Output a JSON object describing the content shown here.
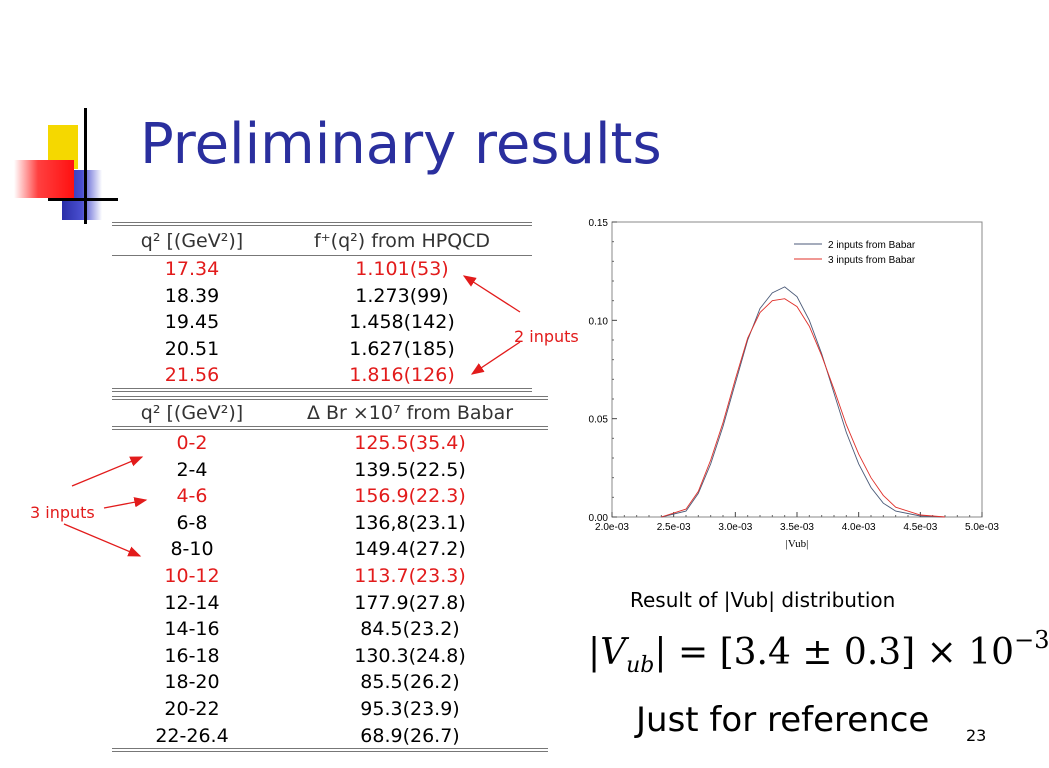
{
  "slide": {
    "title": "Preliminary results",
    "page_number": "23"
  },
  "table_hpqcd": {
    "header": [
      "q² [(GeV²)]",
      "f⁺(q²) from HPQCD"
    ],
    "rows": [
      {
        "q2": "17.34",
        "value": "1.101(53)",
        "highlight": true
      },
      {
        "q2": "18.39",
        "value": "1.273(99)",
        "highlight": false
      },
      {
        "q2": "19.45",
        "value": "1.458(142)",
        "highlight": false
      },
      {
        "q2": "20.51",
        "value": "1.627(185)",
        "highlight": false
      },
      {
        "q2": "21.56",
        "value": "1.816(126)",
        "highlight": true
      }
    ]
  },
  "table_babar": {
    "header": [
      "q² [(GeV²)]",
      "Δ Br ×10⁷ from Babar"
    ],
    "rows": [
      {
        "q2": "0-2",
        "value": "125.5(35.4)",
        "highlight": true
      },
      {
        "q2": "2-4",
        "value": "139.5(22.5)",
        "highlight": false
      },
      {
        "q2": "4-6",
        "value": "156.9(22.3)",
        "highlight": true
      },
      {
        "q2": "6-8",
        "value": "136,8(23.1)",
        "highlight": false
      },
      {
        "q2": "8-10",
        "value": "149.4(27.2)",
        "highlight": false
      },
      {
        "q2": "10-12",
        "value": "113.7(23.3)",
        "highlight": true
      },
      {
        "q2": "12-14",
        "value": "177.9(27.8)",
        "highlight": false
      },
      {
        "q2": "14-16",
        "value": "84.5(23.2)",
        "highlight": false
      },
      {
        "q2": "16-18",
        "value": "130.3(24.8)",
        "highlight": false
      },
      {
        "q2": "18-20",
        "value": "85.5(26.2)",
        "highlight": false
      },
      {
        "q2": "20-22",
        "value": "95.3(23.9)",
        "highlight": false
      },
      {
        "q2": "22-26.4",
        "value": "68.9(26.7)",
        "highlight": false
      }
    ]
  },
  "annotations": {
    "two_inputs": "2 inputs",
    "three_inputs": "3 inputs"
  },
  "colors": {
    "title": "#2a2f9e",
    "highlight": "#e21b1b",
    "series_2": "#4b5a78",
    "series_3": "#e0302a"
  },
  "chart_data": {
    "type": "line",
    "xlabel": "|Vub|",
    "ylabel": "",
    "xlim": [
      0.002,
      0.005
    ],
    "ylim": [
      0,
      0.15
    ],
    "x_ticks": [
      "2.0e-03",
      "2.5e-03",
      "3.0e-03",
      "3.5e-03",
      "4.0e-03",
      "4.5e-03",
      "5.0e-03"
    ],
    "y_ticks": [
      "0.00",
      "0.05",
      "0.10",
      "0.15"
    ],
    "legend": "top-right",
    "series": [
      {
        "name": "2 inputs from Babar",
        "x": [
          0.0024,
          0.0026,
          0.0027,
          0.0028,
          0.0029,
          0.003,
          0.0031,
          0.0032,
          0.0033,
          0.0034,
          0.0035,
          0.0036,
          0.0037,
          0.0038,
          0.0039,
          0.004,
          0.0041,
          0.0042,
          0.0043,
          0.0045,
          0.0047
        ],
        "y": [
          0,
          0.003,
          0.012,
          0.027,
          0.046,
          0.068,
          0.09,
          0.106,
          0.114,
          0.117,
          0.112,
          0.1,
          0.083,
          0.063,
          0.043,
          0.027,
          0.015,
          0.007,
          0.003,
          0.0005,
          0
        ]
      },
      {
        "name": "3 inputs from Babar",
        "x": [
          0.0024,
          0.0026,
          0.0027,
          0.0028,
          0.0029,
          0.003,
          0.0031,
          0.0032,
          0.0033,
          0.0034,
          0.0035,
          0.0036,
          0.0037,
          0.0038,
          0.0039,
          0.004,
          0.0041,
          0.0042,
          0.0043,
          0.0045,
          0.0047
        ],
        "y": [
          0,
          0.004,
          0.013,
          0.029,
          0.048,
          0.07,
          0.091,
          0.104,
          0.11,
          0.111,
          0.107,
          0.097,
          0.082,
          0.065,
          0.047,
          0.032,
          0.02,
          0.011,
          0.005,
          0.001,
          0
        ]
      }
    ]
  },
  "caption": "Result of |Vub| distribution",
  "formula": {
    "lhs": "|V",
    "sub": "ub",
    "rhs": "| = [3.4 ± 0.3] × 10",
    "exp": "−3"
  },
  "reference_note": "Just for reference"
}
